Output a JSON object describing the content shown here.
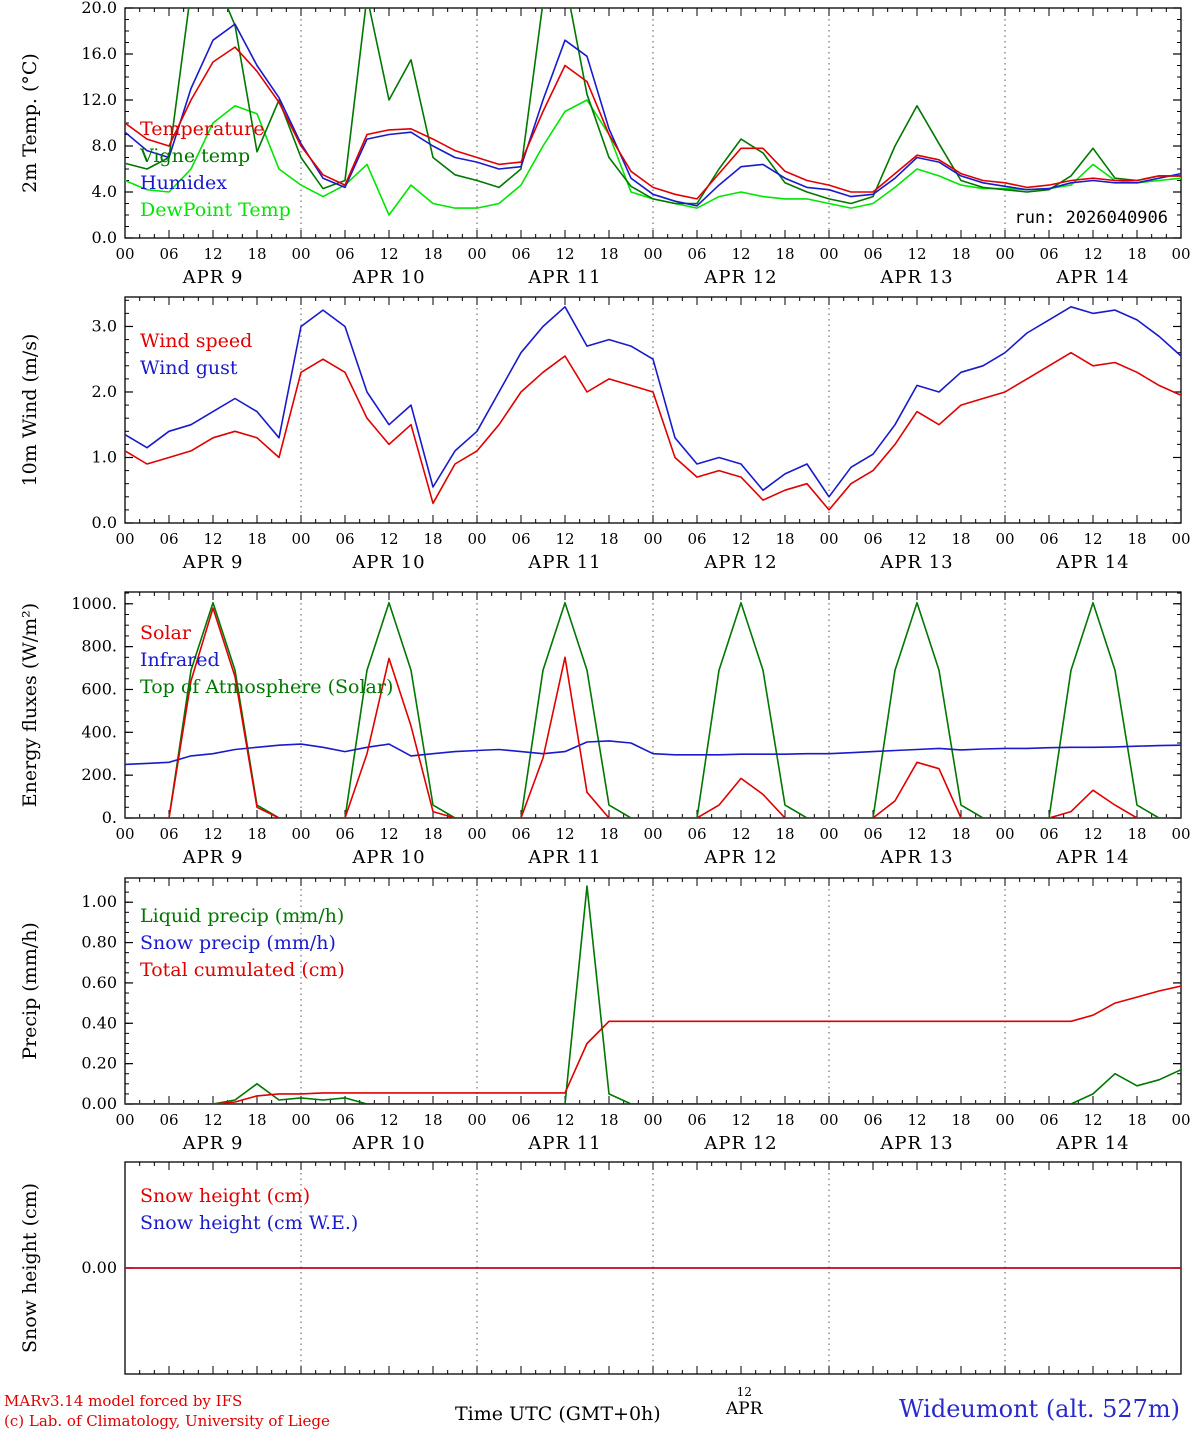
{
  "run_label": "run: 2026040906",
  "colors": {
    "red": "#e10000",
    "blue": "#1a1acd",
    "green": "#007700",
    "light_green": "#00e600",
    "black": "#000000",
    "station_blue": "#2a2acc"
  },
  "footer": {
    "credit_line1": "MARv3.14 model forced by IFS",
    "credit_line2": "(c) Lab. of Climatology, University of Liege",
    "xlabel": "Time UTC (GMT+0h)",
    "xlabel_day_num": "12",
    "xlabel_day": "APR",
    "station": "Wideumont (alt. 527m)"
  },
  "x_axis": {
    "hour_step_labeled": 6,
    "hour_labels_cycle": [
      "00",
      "06",
      "12",
      "18"
    ],
    "days": [
      "APR  9",
      "APR 10",
      "APR 11",
      "APR 12",
      "APR 13",
      "APR 14"
    ]
  },
  "x_hours": [
    0,
    3,
    6,
    9,
    12,
    15,
    18,
    21,
    24,
    27,
    30,
    33,
    36,
    39,
    42,
    45,
    48,
    51,
    54,
    57,
    60,
    63,
    66,
    69,
    72,
    75,
    78,
    81,
    84,
    87,
    90,
    93,
    96,
    99,
    102,
    105,
    108,
    111,
    114,
    117,
    120,
    123,
    126,
    129,
    132,
    135,
    138,
    141,
    144
  ],
  "chart_data": [
    {
      "type": "line",
      "ylabel": "2m Temp. (°C)",
      "ylim": [
        0,
        20
      ],
      "yticks": [
        {
          "v": 0,
          "label": "0.0"
        },
        {
          "v": 4,
          "label": "4.0"
        },
        {
          "v": 8,
          "label": "8.0"
        },
        {
          "v": 12,
          "label": "12.0"
        },
        {
          "v": 16,
          "label": "16.0"
        },
        {
          "v": 20,
          "label": "20.0"
        }
      ],
      "yminor": 1,
      "legend": [
        {
          "label": "Temperature",
          "color": "red"
        },
        {
          "label": "Vigne temp",
          "color": "green"
        },
        {
          "label": "Humidex",
          "color": "blue"
        },
        {
          "label": "DewPoint Temp",
          "color": "light_green"
        }
      ],
      "series": [
        {
          "name": "DewPoint Temp",
          "color": "light_green",
          "values": [
            5.0,
            4.2,
            4.0,
            6.0,
            10.0,
            11.5,
            10.8,
            6.0,
            4.6,
            3.6,
            4.6,
            6.4,
            2.0,
            4.6,
            3.0,
            2.6,
            2.6,
            3.0,
            4.6,
            8.0,
            11.0,
            12.0,
            9.0,
            4.0,
            3.4,
            3.0,
            2.6,
            3.6,
            4.0,
            3.6,
            3.4,
            3.4,
            3.0,
            2.6,
            3.0,
            4.4,
            6.0,
            5.4,
            4.6,
            4.3,
            4.3,
            4.2,
            4.3,
            4.6,
            6.4,
            5.0,
            4.8,
            5.0,
            5.2
          ]
        },
        {
          "name": "Vigne temp",
          "color": "green",
          "values": [
            6.5,
            6.0,
            7.0,
            21.5,
            23.0,
            18.5,
            7.5,
            12.0,
            7.0,
            4.3,
            5.0,
            21.0,
            12.0,
            15.5,
            7.0,
            5.5,
            5.0,
            4.4,
            6.0,
            20.5,
            22.5,
            12.5,
            7.0,
            4.5,
            3.4,
            3.0,
            3.0,
            6.0,
            8.6,
            7.4,
            4.8,
            4.0,
            3.4,
            3.0,
            3.6,
            8.0,
            11.5,
            8.2,
            5.0,
            4.4,
            4.2,
            4.0,
            4.2,
            5.4,
            7.8,
            5.2,
            5.0,
            5.4,
            5.4
          ]
        },
        {
          "name": "Humidex",
          "color": "blue",
          "values": [
            9.2,
            7.6,
            7.0,
            13.0,
            17.2,
            18.6,
            15.0,
            12.2,
            8.2,
            5.2,
            4.4,
            8.6,
            9.0,
            9.2,
            8.0,
            7.0,
            6.6,
            6.0,
            6.2,
            12.0,
            17.2,
            15.8,
            9.5,
            5.2,
            3.8,
            3.2,
            2.8,
            4.6,
            6.2,
            6.4,
            5.2,
            4.4,
            4.2,
            3.6,
            3.8,
            5.2,
            7.0,
            6.6,
            5.4,
            4.8,
            4.5,
            4.2,
            4.3,
            4.8,
            5.0,
            4.8,
            4.8,
            5.2,
            5.6
          ]
        },
        {
          "name": "Temperature",
          "color": "red",
          "values": [
            10.0,
            8.6,
            8.0,
            12.0,
            15.3,
            16.6,
            14.5,
            11.8,
            8.0,
            5.5,
            4.6,
            9.0,
            9.4,
            9.5,
            8.6,
            7.6,
            7.0,
            6.4,
            6.6,
            11.0,
            15.0,
            13.6,
            9.0,
            5.8,
            4.4,
            3.8,
            3.4,
            5.6,
            7.8,
            7.8,
            5.8,
            5.0,
            4.6,
            4.0,
            4.0,
            5.6,
            7.2,
            6.8,
            5.6,
            5.0,
            4.8,
            4.4,
            4.6,
            5.0,
            5.2,
            5.0,
            5.0,
            5.4,
            5.4
          ]
        }
      ]
    },
    {
      "type": "line",
      "ylabel": "10m Wind (m/s)",
      "ylim": [
        0,
        3.45
      ],
      "yticks": [
        {
          "v": 0,
          "label": "0.0"
        },
        {
          "v": 1,
          "label": "1.0"
        },
        {
          "v": 2,
          "label": "2.0"
        },
        {
          "v": 3,
          "label": "3.0"
        }
      ],
      "yminor": 0.2,
      "legend": [
        {
          "label": "Wind speed",
          "color": "red"
        },
        {
          "label": "Wind gust",
          "color": "blue"
        }
      ],
      "series": [
        {
          "name": "Wind gust",
          "color": "blue",
          "values": [
            1.35,
            1.15,
            1.4,
            1.5,
            1.7,
            1.9,
            1.7,
            1.3,
            3.0,
            3.25,
            3.0,
            2.0,
            1.5,
            1.8,
            0.55,
            1.1,
            1.4,
            2.0,
            2.6,
            3.0,
            3.3,
            2.7,
            2.8,
            2.7,
            2.5,
            1.3,
            0.9,
            1.0,
            0.9,
            0.5,
            0.75,
            0.9,
            0.4,
            0.85,
            1.05,
            1.5,
            2.1,
            2.0,
            2.3,
            2.4,
            2.6,
            2.9,
            3.1,
            3.3,
            3.2,
            3.25,
            3.1,
            2.85,
            2.55
          ]
        },
        {
          "name": "Wind speed",
          "color": "red",
          "values": [
            1.1,
            0.9,
            1.0,
            1.1,
            1.3,
            1.4,
            1.3,
            1.0,
            2.3,
            2.5,
            2.3,
            1.6,
            1.2,
            1.5,
            0.3,
            0.9,
            1.1,
            1.5,
            2.0,
            2.3,
            2.55,
            2.0,
            2.2,
            2.1,
            2.0,
            1.0,
            0.7,
            0.8,
            0.7,
            0.35,
            0.5,
            0.6,
            0.2,
            0.6,
            0.8,
            1.2,
            1.7,
            1.5,
            1.8,
            1.9,
            2.0,
            2.2,
            2.4,
            2.6,
            2.4,
            2.45,
            2.3,
            2.1,
            1.95
          ]
        }
      ]
    },
    {
      "type": "line",
      "ylabel": "Energy fluxes (W/m²)",
      "ylim": [
        0,
        1055
      ],
      "yticks": [
        {
          "v": 0,
          "label": "0."
        },
        {
          "v": 200,
          "label": "200."
        },
        {
          "v": 400,
          "label": "400."
        },
        {
          "v": 600,
          "label": "600."
        },
        {
          "v": 800,
          "label": "800."
        },
        {
          "v": 1000,
          "label": "1000."
        }
      ],
      "yminor": 50,
      "legend": [
        {
          "label": "Solar",
          "color": "red"
        },
        {
          "label": "Infrared",
          "color": "blue"
        },
        {
          "label": "Top of Atmosphere (Solar)",
          "color": "green"
        }
      ],
      "series": [
        {
          "name": "Top of Atmosphere (Solar)",
          "color": "green",
          "values": [
            0,
            0,
            0,
            690,
            1005,
            690,
            60,
            0,
            0,
            0,
            0,
            690,
            1005,
            690,
            60,
            0,
            0,
            0,
            0,
            690,
            1005,
            690,
            60,
            0,
            0,
            0,
            0,
            690,
            1005,
            690,
            60,
            0,
            0,
            0,
            0,
            690,
            1005,
            690,
            60,
            0,
            0,
            0,
            0,
            690,
            1005,
            690,
            60,
            0,
            0
          ]
        },
        {
          "name": "Infrared",
          "color": "blue",
          "values": [
            250,
            255,
            260,
            290,
            300,
            320,
            330,
            340,
            345,
            330,
            310,
            330,
            345,
            290,
            300,
            310,
            315,
            320,
            310,
            300,
            310,
            355,
            360,
            350,
            300,
            295,
            295,
            295,
            298,
            298,
            298,
            300,
            300,
            305,
            310,
            315,
            320,
            325,
            318,
            322,
            325,
            325,
            328,
            330,
            330,
            332,
            335,
            338,
            340
          ]
        },
        {
          "name": "Solar",
          "color": "red",
          "values": [
            0,
            0,
            0,
            640,
            980,
            660,
            50,
            0,
            0,
            0,
            0,
            300,
            745,
            430,
            30,
            0,
            0,
            0,
            0,
            280,
            750,
            120,
            0,
            0,
            0,
            0,
            0,
            60,
            185,
            110,
            0,
            0,
            0,
            0,
            0,
            80,
            260,
            230,
            0,
            0,
            0,
            0,
            0,
            30,
            130,
            60,
            0,
            0,
            0
          ]
        }
      ]
    },
    {
      "type": "line",
      "ylabel": "Precip (mm/h)",
      "ylim": [
        0,
        1.12
      ],
      "yticks": [
        {
          "v": 0,
          "label": "0.00"
        },
        {
          "v": 0.2,
          "label": "0.20"
        },
        {
          "v": 0.4,
          "label": "0.40"
        },
        {
          "v": 0.6,
          "label": "0.60"
        },
        {
          "v": 0.8,
          "label": "0.80"
        },
        {
          "v": 1.0,
          "label": "1.00"
        }
      ],
      "yminor": 0.05,
      "legend": [
        {
          "label": "Liquid precip (mm/h)",
          "color": "green"
        },
        {
          "label": "Snow precip (mm/h)",
          "color": "blue"
        },
        {
          "label": "Total cumulated (cm)",
          "color": "red"
        }
      ],
      "series": [
        {
          "name": "Liquid precip (mm/h)",
          "color": "green",
          "values": [
            0,
            0,
            0,
            0,
            0,
            0.02,
            0.1,
            0.02,
            0.03,
            0.02,
            0.03,
            0,
            0,
            0,
            0,
            0,
            0,
            0,
            0,
            0,
            0,
            1.08,
            0.05,
            0,
            0,
            0,
            0,
            0,
            0,
            0,
            0,
            0,
            0,
            0,
            0,
            0,
            0,
            0,
            0,
            0,
            0,
            0,
            0,
            0,
            0.05,
            0.15,
            0.09,
            0.12,
            0.17
          ]
        },
        {
          "name": "Snow precip (mm/h)",
          "color": "blue",
          "values": [
            0,
            0,
            0,
            0,
            0,
            0,
            0,
            0,
            0,
            0,
            0,
            0,
            0,
            0,
            0,
            0,
            0,
            0,
            0,
            0,
            0,
            0,
            0,
            0,
            0,
            0,
            0,
            0,
            0,
            0,
            0,
            0,
            0,
            0,
            0,
            0,
            0,
            0,
            0,
            0,
            0,
            0,
            0,
            0,
            0,
            0,
            0,
            0,
            0
          ]
        },
        {
          "name": "Total cumulated (cm)",
          "color": "red",
          "values": [
            0,
            0,
            0,
            0,
            0,
            0.01,
            0.04,
            0.05,
            0.05,
            0.055,
            0.055,
            0.055,
            0.055,
            0.055,
            0.055,
            0.055,
            0.055,
            0.055,
            0.055,
            0.055,
            0.055,
            0.3,
            0.41,
            0.41,
            0.41,
            0.41,
            0.41,
            0.41,
            0.41,
            0.41,
            0.41,
            0.41,
            0.41,
            0.41,
            0.41,
            0.41,
            0.41,
            0.41,
            0.41,
            0.41,
            0.41,
            0.41,
            0.41,
            0.41,
            0.44,
            0.5,
            0.53,
            0.56,
            0.585
          ]
        }
      ]
    },
    {
      "type": "line",
      "ylabel": "Snow height (cm)",
      "ylim": [
        -1,
        1
      ],
      "yticks": [
        {
          "v": 0,
          "label": "0.00"
        }
      ],
      "yminor": null,
      "legend": [
        {
          "label": "Snow height (cm)",
          "color": "red"
        },
        {
          "label": "Snow height (cm W.E.)",
          "color": "blue"
        }
      ],
      "series": [
        {
          "name": "Snow height (cm W.E.)",
          "color": "blue",
          "values": [
            0,
            0,
            0,
            0,
            0,
            0,
            0,
            0,
            0,
            0,
            0,
            0,
            0,
            0,
            0,
            0,
            0,
            0,
            0,
            0,
            0,
            0,
            0,
            0,
            0,
            0,
            0,
            0,
            0,
            0,
            0,
            0,
            0,
            0,
            0,
            0,
            0,
            0,
            0,
            0,
            0,
            0,
            0,
            0,
            0,
            0,
            0,
            0,
            0
          ]
        },
        {
          "name": "Snow height (cm)",
          "color": "red",
          "values": [
            0,
            0,
            0,
            0,
            0,
            0,
            0,
            0,
            0,
            0,
            0,
            0,
            0,
            0,
            0,
            0,
            0,
            0,
            0,
            0,
            0,
            0,
            0,
            0,
            0,
            0,
            0,
            0,
            0,
            0,
            0,
            0,
            0,
            0,
            0,
            0,
            0,
            0,
            0,
            0,
            0,
            0,
            0,
            0,
            0,
            0,
            0,
            0,
            0
          ]
        }
      ]
    }
  ]
}
